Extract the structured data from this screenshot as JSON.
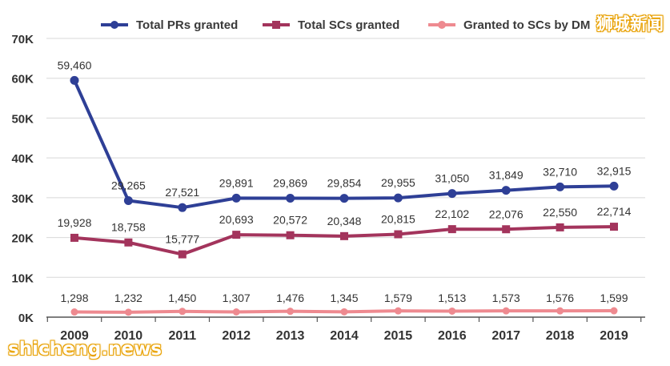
{
  "colors": {
    "pr": "#2e3f96",
    "sc": "#a3345c",
    "dm": "#ee8a90",
    "axis_text": "#333333",
    "grid": "#d8d8d8"
  },
  "watermarks": {
    "top_right": "狮城新闻",
    "bottom_left": "shicheng.news"
  },
  "chart_data": {
    "type": "line",
    "title": "",
    "xlabel": "",
    "ylabel": "",
    "categories": [
      "2009",
      "2010",
      "2011",
      "2012",
      "2013",
      "2014",
      "2015",
      "2016",
      "2017",
      "2018",
      "2019"
    ],
    "ylim": [
      0,
      70000
    ],
    "yticks": [
      0,
      10000,
      20000,
      30000,
      40000,
      50000,
      60000,
      70000
    ],
    "ytick_labels": [
      "0K",
      "10K",
      "20K",
      "30K",
      "40K",
      "50K",
      "60K",
      "70K"
    ],
    "legend_position": "top",
    "series": [
      {
        "key": "pr",
        "name": "Total PRs granted",
        "values": [
          59460,
          29265,
          27521,
          29891,
          29869,
          29854,
          29955,
          31050,
          31849,
          32710,
          32915
        ],
        "labels": [
          "59,460",
          "29,265",
          "27,521",
          "29,891",
          "29,869",
          "29,854",
          "29,955",
          "31,050",
          "31,849",
          "32,710",
          "32,915"
        ]
      },
      {
        "key": "sc",
        "name": "Total SCs granted",
        "values": [
          19928,
          18758,
          15777,
          20693,
          20572,
          20348,
          20815,
          22102,
          22076,
          22550,
          22714
        ],
        "labels": [
          "19,928",
          "18,758",
          "15,777",
          "20,693",
          "20,572",
          "20,348",
          "20,815",
          "22,102",
          "22,076",
          "22,550",
          "22,714"
        ]
      },
      {
        "key": "dm",
        "name": "Granted to SCs by DM",
        "values": [
          1298,
          1232,
          1450,
          1307,
          1476,
          1345,
          1579,
          1513,
          1573,
          1576,
          1599
        ],
        "labels": [
          "1,298",
          "1,232",
          "1,450",
          "1,307",
          "1,476",
          "1,345",
          "1,579",
          "1,513",
          "1,573",
          "1,576",
          "1,599"
        ]
      }
    ]
  }
}
